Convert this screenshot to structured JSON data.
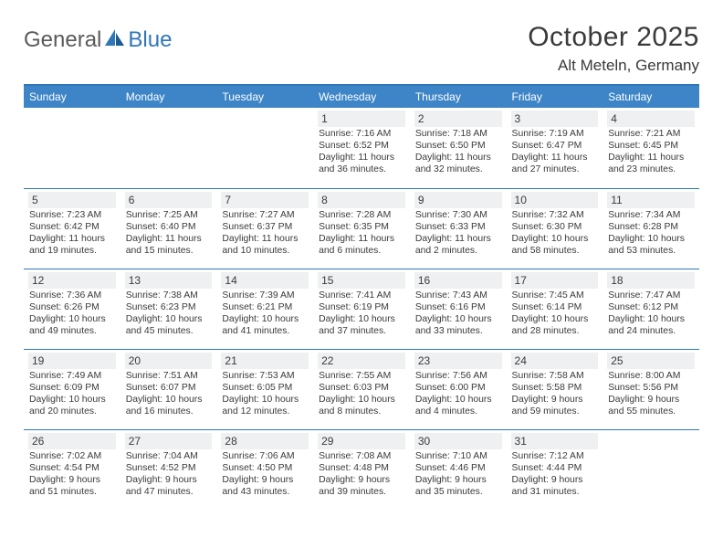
{
  "brand": {
    "part1": "General",
    "part2": "Blue"
  },
  "title": "October 2025",
  "location": "Alt Meteln, Germany",
  "colors": {
    "header_bg": "#3d85c6",
    "header_text": "#ffffff",
    "divider": "#2f77b8",
    "daynum_bg": "#eef0f2",
    "text": "#3a3a3a",
    "logo_gray": "#5a5a5a",
    "logo_blue": "#2f77b8",
    "background": "#ffffff"
  },
  "typography": {
    "title_fontsize": 30,
    "location_fontsize": 17,
    "dayheader_fontsize": 12,
    "daynum_fontsize": 12,
    "body_fontsize": 10.4
  },
  "day_headers": [
    "Sunday",
    "Monday",
    "Tuesday",
    "Wednesday",
    "Thursday",
    "Friday",
    "Saturday"
  ],
  "weeks": [
    [
      {
        "num": "",
        "sunrise": "",
        "sunset": "",
        "daylight": "",
        "empty": true
      },
      {
        "num": "",
        "sunrise": "",
        "sunset": "",
        "daylight": "",
        "empty": true
      },
      {
        "num": "",
        "sunrise": "",
        "sunset": "",
        "daylight": "",
        "empty": true
      },
      {
        "num": "1",
        "sunrise": "Sunrise: 7:16 AM",
        "sunset": "Sunset: 6:52 PM",
        "daylight": "Daylight: 11 hours and 36 minutes."
      },
      {
        "num": "2",
        "sunrise": "Sunrise: 7:18 AM",
        "sunset": "Sunset: 6:50 PM",
        "daylight": "Daylight: 11 hours and 32 minutes."
      },
      {
        "num": "3",
        "sunrise": "Sunrise: 7:19 AM",
        "sunset": "Sunset: 6:47 PM",
        "daylight": "Daylight: 11 hours and 27 minutes."
      },
      {
        "num": "4",
        "sunrise": "Sunrise: 7:21 AM",
        "sunset": "Sunset: 6:45 PM",
        "daylight": "Daylight: 11 hours and 23 minutes."
      }
    ],
    [
      {
        "num": "5",
        "sunrise": "Sunrise: 7:23 AM",
        "sunset": "Sunset: 6:42 PM",
        "daylight": "Daylight: 11 hours and 19 minutes."
      },
      {
        "num": "6",
        "sunrise": "Sunrise: 7:25 AM",
        "sunset": "Sunset: 6:40 PM",
        "daylight": "Daylight: 11 hours and 15 minutes."
      },
      {
        "num": "7",
        "sunrise": "Sunrise: 7:27 AM",
        "sunset": "Sunset: 6:37 PM",
        "daylight": "Daylight: 11 hours and 10 minutes."
      },
      {
        "num": "8",
        "sunrise": "Sunrise: 7:28 AM",
        "sunset": "Sunset: 6:35 PM",
        "daylight": "Daylight: 11 hours and 6 minutes."
      },
      {
        "num": "9",
        "sunrise": "Sunrise: 7:30 AM",
        "sunset": "Sunset: 6:33 PM",
        "daylight": "Daylight: 11 hours and 2 minutes."
      },
      {
        "num": "10",
        "sunrise": "Sunrise: 7:32 AM",
        "sunset": "Sunset: 6:30 PM",
        "daylight": "Daylight: 10 hours and 58 minutes."
      },
      {
        "num": "11",
        "sunrise": "Sunrise: 7:34 AM",
        "sunset": "Sunset: 6:28 PM",
        "daylight": "Daylight: 10 hours and 53 minutes."
      }
    ],
    [
      {
        "num": "12",
        "sunrise": "Sunrise: 7:36 AM",
        "sunset": "Sunset: 6:26 PM",
        "daylight": "Daylight: 10 hours and 49 minutes."
      },
      {
        "num": "13",
        "sunrise": "Sunrise: 7:38 AM",
        "sunset": "Sunset: 6:23 PM",
        "daylight": "Daylight: 10 hours and 45 minutes."
      },
      {
        "num": "14",
        "sunrise": "Sunrise: 7:39 AM",
        "sunset": "Sunset: 6:21 PM",
        "daylight": "Daylight: 10 hours and 41 minutes."
      },
      {
        "num": "15",
        "sunrise": "Sunrise: 7:41 AM",
        "sunset": "Sunset: 6:19 PM",
        "daylight": "Daylight: 10 hours and 37 minutes."
      },
      {
        "num": "16",
        "sunrise": "Sunrise: 7:43 AM",
        "sunset": "Sunset: 6:16 PM",
        "daylight": "Daylight: 10 hours and 33 minutes."
      },
      {
        "num": "17",
        "sunrise": "Sunrise: 7:45 AM",
        "sunset": "Sunset: 6:14 PM",
        "daylight": "Daylight: 10 hours and 28 minutes."
      },
      {
        "num": "18",
        "sunrise": "Sunrise: 7:47 AM",
        "sunset": "Sunset: 6:12 PM",
        "daylight": "Daylight: 10 hours and 24 minutes."
      }
    ],
    [
      {
        "num": "19",
        "sunrise": "Sunrise: 7:49 AM",
        "sunset": "Sunset: 6:09 PM",
        "daylight": "Daylight: 10 hours and 20 minutes."
      },
      {
        "num": "20",
        "sunrise": "Sunrise: 7:51 AM",
        "sunset": "Sunset: 6:07 PM",
        "daylight": "Daylight: 10 hours and 16 minutes."
      },
      {
        "num": "21",
        "sunrise": "Sunrise: 7:53 AM",
        "sunset": "Sunset: 6:05 PM",
        "daylight": "Daylight: 10 hours and 12 minutes."
      },
      {
        "num": "22",
        "sunrise": "Sunrise: 7:55 AM",
        "sunset": "Sunset: 6:03 PM",
        "daylight": "Daylight: 10 hours and 8 minutes."
      },
      {
        "num": "23",
        "sunrise": "Sunrise: 7:56 AM",
        "sunset": "Sunset: 6:00 PM",
        "daylight": "Daylight: 10 hours and 4 minutes."
      },
      {
        "num": "24",
        "sunrise": "Sunrise: 7:58 AM",
        "sunset": "Sunset: 5:58 PM",
        "daylight": "Daylight: 9 hours and 59 minutes."
      },
      {
        "num": "25",
        "sunrise": "Sunrise: 8:00 AM",
        "sunset": "Sunset: 5:56 PM",
        "daylight": "Daylight: 9 hours and 55 minutes."
      }
    ],
    [
      {
        "num": "26",
        "sunrise": "Sunrise: 7:02 AM",
        "sunset": "Sunset: 4:54 PM",
        "daylight": "Daylight: 9 hours and 51 minutes."
      },
      {
        "num": "27",
        "sunrise": "Sunrise: 7:04 AM",
        "sunset": "Sunset: 4:52 PM",
        "daylight": "Daylight: 9 hours and 47 minutes."
      },
      {
        "num": "28",
        "sunrise": "Sunrise: 7:06 AM",
        "sunset": "Sunset: 4:50 PM",
        "daylight": "Daylight: 9 hours and 43 minutes."
      },
      {
        "num": "29",
        "sunrise": "Sunrise: 7:08 AM",
        "sunset": "Sunset: 4:48 PM",
        "daylight": "Daylight: 9 hours and 39 minutes."
      },
      {
        "num": "30",
        "sunrise": "Sunrise: 7:10 AM",
        "sunset": "Sunset: 4:46 PM",
        "daylight": "Daylight: 9 hours and 35 minutes."
      },
      {
        "num": "31",
        "sunrise": "Sunrise: 7:12 AM",
        "sunset": "Sunset: 4:44 PM",
        "daylight": "Daylight: 9 hours and 31 minutes."
      },
      {
        "num": "",
        "sunrise": "",
        "sunset": "",
        "daylight": "",
        "empty": true
      }
    ]
  ]
}
